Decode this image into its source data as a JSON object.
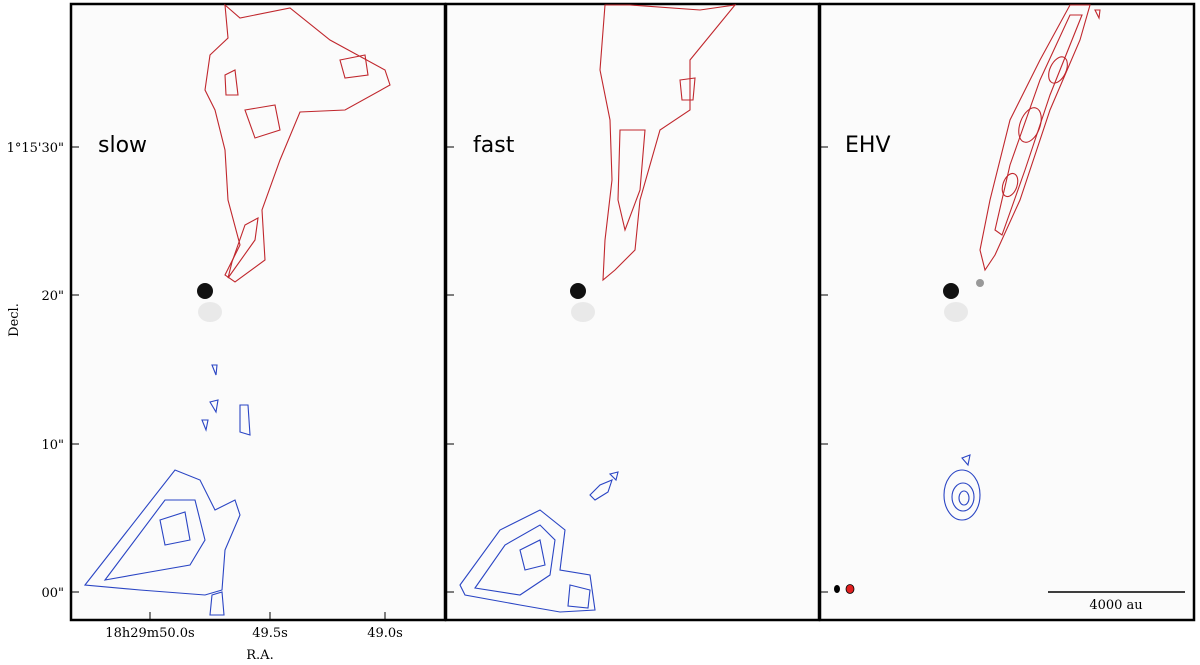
{
  "panels": [
    {
      "label": "slow"
    },
    {
      "label": "fast"
    },
    {
      "label": "EHV"
    }
  ],
  "y_axis": {
    "label": "Decl.",
    "ticks": [
      "1°15'30\"",
      "20\"",
      "10\"",
      "00\""
    ]
  },
  "x_axis": {
    "label": "R.A.",
    "ticks": [
      "18h29m50.0s",
      "49.5s",
      "49.0s"
    ]
  },
  "scale_bar": {
    "label": "4000 au"
  }
}
